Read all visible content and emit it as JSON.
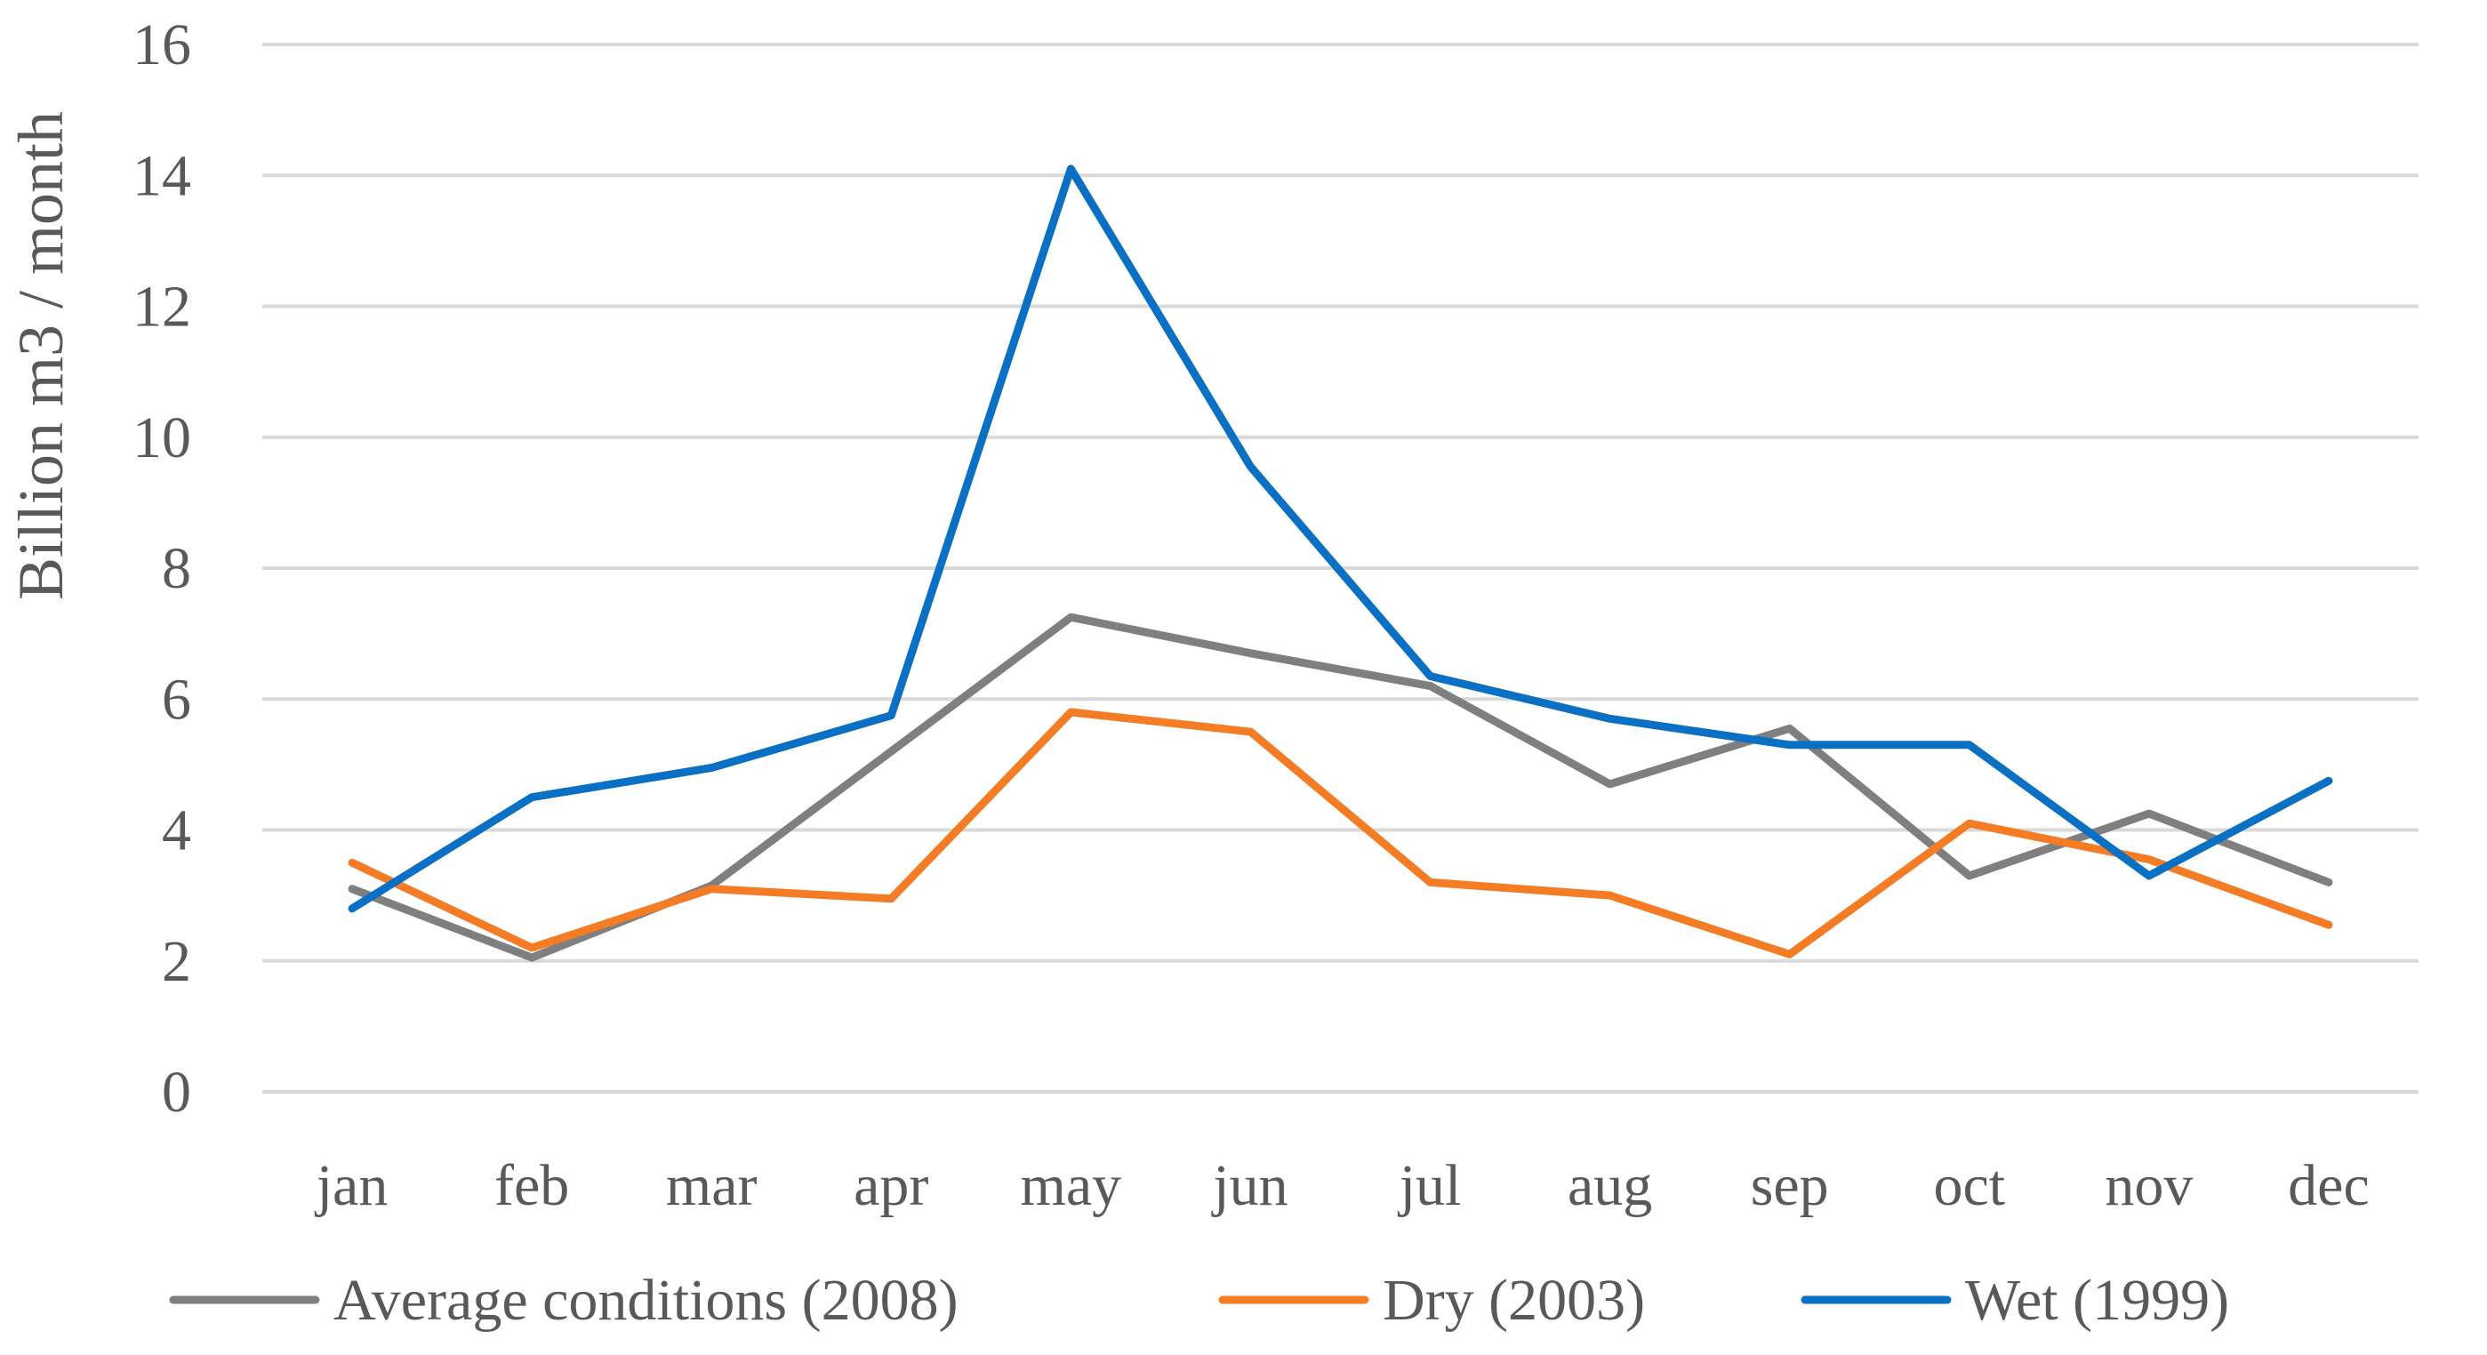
{
  "chart_data": {
    "type": "line",
    "title": "",
    "xlabel": "",
    "ylabel": "Billion m3 / month",
    "ylim": [
      0,
      16
    ],
    "yticks": [
      0,
      2,
      4,
      6,
      8,
      10,
      12,
      14,
      16
    ],
    "grid": true,
    "legend_position": "bottom",
    "categories": [
      "jan",
      "feb",
      "mar",
      "apr",
      "may",
      "jun",
      "jul",
      "aug",
      "sep",
      "oct",
      "nov",
      "dec"
    ],
    "series": [
      {
        "name": "Average conditions (2008)",
        "color": "#7f7f7f",
        "values": [
          3.1,
          2.05,
          3.15,
          5.2,
          7.25,
          6.7,
          6.2,
          4.7,
          5.55,
          3.3,
          4.25,
          3.2
        ]
      },
      {
        "name": "Dry (2003)",
        "color": "#f47c24",
        "values": [
          3.5,
          2.2,
          3.1,
          2.95,
          5.8,
          5.5,
          3.2,
          3.0,
          2.1,
          4.1,
          3.55,
          2.55
        ]
      },
      {
        "name": "Wet (1999)",
        "color": "#0a70c4",
        "values": [
          2.8,
          4.5,
          4.95,
          5.75,
          14.1,
          9.55,
          6.35,
          5.7,
          5.3,
          5.3,
          3.3,
          4.75
        ]
      }
    ]
  }
}
